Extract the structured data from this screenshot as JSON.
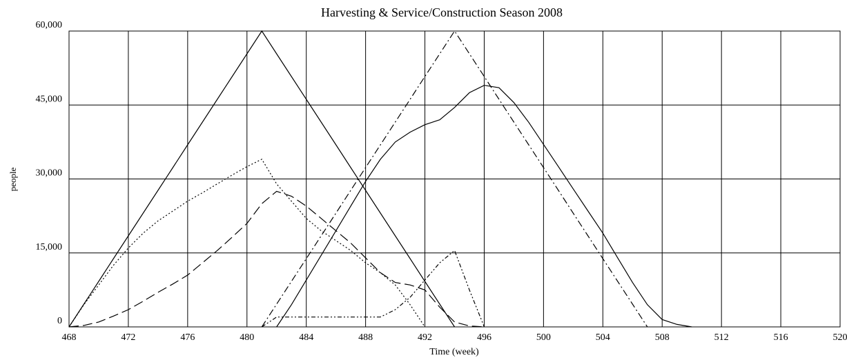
{
  "chart_data": {
    "type": "line",
    "title": "Harvesting & Service/Construction Season 2008",
    "x_label": "Time (week)",
    "y_label": "people",
    "x": [
      468,
      469,
      470,
      471,
      472,
      473,
      474,
      475,
      476,
      477,
      478,
      479,
      480,
      481,
      482,
      483,
      484,
      485,
      486,
      487,
      488,
      489,
      490,
      491,
      492,
      493,
      494,
      495,
      496,
      497,
      498,
      499,
      500,
      501,
      502,
      503,
      504,
      505,
      506,
      507,
      508,
      509,
      510
    ],
    "series": [
      {
        "color": "#000000",
        "dash": "none",
        "values": [
          0,
          4615,
          9231,
          13846,
          18462,
          23077,
          27692,
          32308,
          36923,
          41538,
          46154,
          50769,
          55385,
          60000,
          55385,
          50769,
          46154,
          41538,
          36923,
          32308,
          27692,
          23077,
          18462,
          13846,
          9231,
          4615,
          0,
          null,
          null,
          null,
          null,
          null,
          null,
          null,
          null,
          null,
          null,
          null,
          null,
          null,
          null,
          null,
          null
        ]
      },
      {
        "color": "#000000",
        "dash": "2,3",
        "values": [
          0,
          4500,
          8500,
          12500,
          16000,
          19000,
          21500,
          23500,
          25500,
          27200,
          29000,
          30800,
          32500,
          34000,
          29000,
          25500,
          22000,
          19500,
          17500,
          15500,
          13000,
          11000,
          8500,
          4500,
          0,
          null,
          null,
          null,
          null,
          null,
          null,
          null,
          null,
          null,
          null,
          null,
          null,
          null,
          null,
          null,
          null,
          null,
          null
        ]
      },
      {
        "color": "#000000",
        "dash": "14,6",
        "values": [
          0,
          300,
          1000,
          2200,
          3500,
          5200,
          7000,
          8700,
          10500,
          13000,
          15500,
          18200,
          21000,
          25000,
          27500,
          26500,
          24500,
          22000,
          19500,
          17000,
          14000,
          11000,
          9000,
          8500,
          7500,
          4000,
          1000,
          200,
          0,
          null,
          null,
          null,
          null,
          null,
          null,
          null,
          null,
          null,
          null,
          null,
          null,
          null,
          null
        ]
      },
      {
        "color": "#000000",
        "dash": "10,4,2,4",
        "values": [
          null,
          null,
          null,
          null,
          null,
          null,
          null,
          null,
          null,
          null,
          null,
          null,
          null,
          0,
          4615,
          9231,
          13846,
          18462,
          23077,
          27692,
          32308,
          36923,
          41538,
          46154,
          50769,
          55385,
          60000,
          55385,
          50769,
          46154,
          41538,
          36923,
          32308,
          27692,
          23077,
          18462,
          13846,
          9231,
          4615,
          0,
          null,
          null,
          null
        ]
      },
      {
        "color": "#000000",
        "dash": "6,3,2,3,2,3",
        "values": [
          null,
          null,
          null,
          null,
          null,
          null,
          null,
          null,
          null,
          null,
          null,
          null,
          null,
          0,
          2000,
          2000,
          2000,
          2000,
          2000,
          2000,
          2000,
          2000,
          3500,
          6000,
          9500,
          13000,
          15500,
          7500,
          0,
          null,
          null,
          null,
          null,
          null,
          null,
          null,
          null,
          null,
          null,
          null,
          null,
          null,
          null
        ]
      },
      {
        "color": "#000000",
        "dash": "none",
        "values": [
          null,
          null,
          null,
          null,
          null,
          null,
          null,
          null,
          null,
          null,
          null,
          null,
          null,
          null,
          0,
          4500,
          9500,
          14500,
          19500,
          24500,
          29500,
          34000,
          37500,
          39500,
          41000,
          42000,
          44500,
          47500,
          49000,
          48500,
          45500,
          41500,
          37000,
          32500,
          28000,
          23500,
          19000,
          14000,
          9000,
          4500,
          1500,
          500,
          0
        ]
      }
    ],
    "xlim": [
      468,
      520
    ],
    "xticks": [
      468,
      472,
      476,
      480,
      484,
      488,
      492,
      496,
      500,
      504,
      508,
      512,
      516,
      520
    ],
    "ylim": [
      0,
      60000
    ],
    "yticks": [
      0,
      {
        "value": 15000,
        "label": "15,000"
      },
      {
        "value": 30000,
        "label": "30,000"
      },
      {
        "value": 45000,
        "label": "45,000"
      },
      {
        "value": 60000,
        "label": "60,000"
      }
    ],
    "grid": true
  }
}
